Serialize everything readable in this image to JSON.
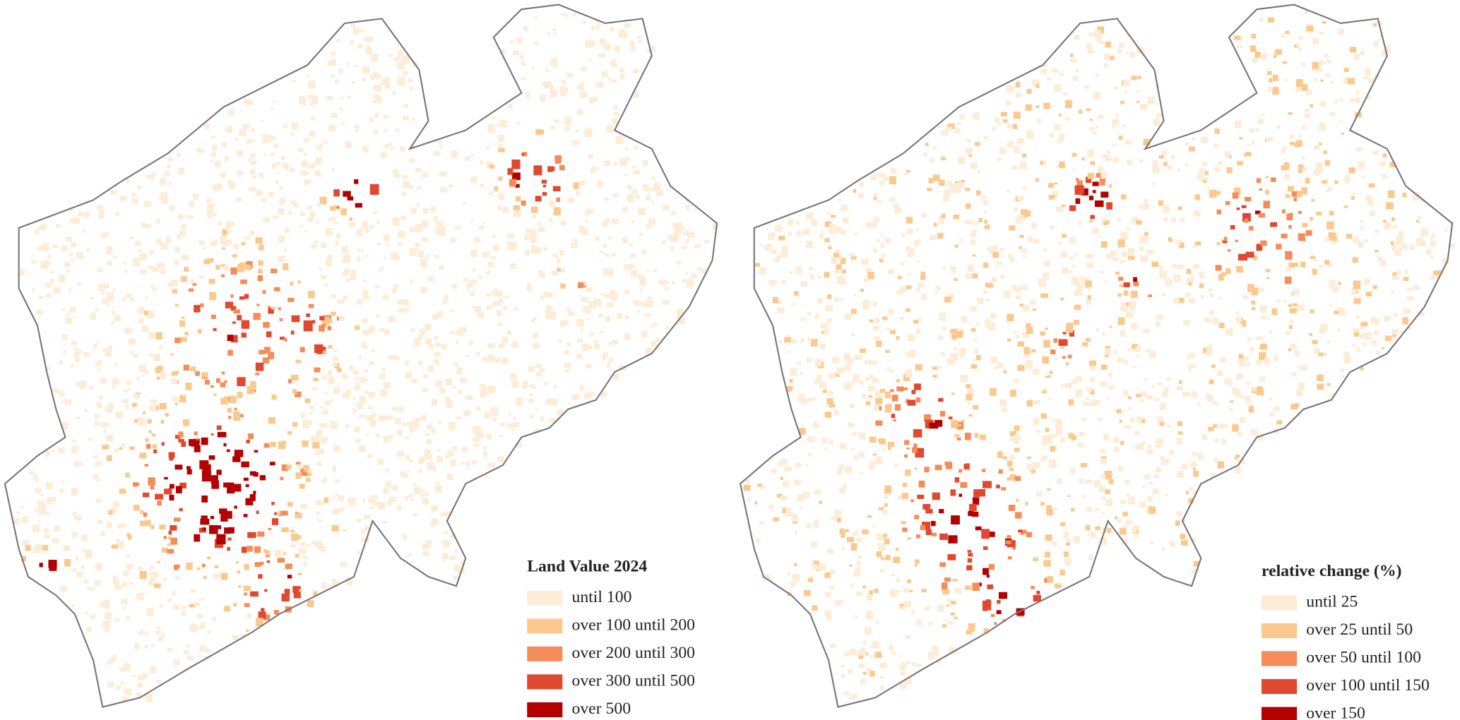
{
  "maps": [
    {
      "legend": {
        "title": "Land Value 2024",
        "classes": [
          {
            "label": "until 100",
            "color": "#fdecd6"
          },
          {
            "label": "over 100 until 200",
            "color": "#fbc98e"
          },
          {
            "label": "over 200 until 300",
            "color": "#f58d5a"
          },
          {
            "label": "over 300 until 500",
            "color": "#e0492f"
          },
          {
            "label": "over 500",
            "color": "#b30000"
          }
        ]
      }
    },
    {
      "legend": {
        "title": "relative change (%)",
        "classes": [
          {
            "label": "until 25",
            "color": "#fdecd6"
          },
          {
            "label": "over 25 until 50",
            "color": "#fbc98e"
          },
          {
            "label": "over 50 until 100",
            "color": "#f58d5a"
          },
          {
            "label": "over 100 until 150",
            "color": "#e0492f"
          },
          {
            "label": "over 150",
            "color": "#b30000"
          }
        ]
      }
    }
  ]
}
